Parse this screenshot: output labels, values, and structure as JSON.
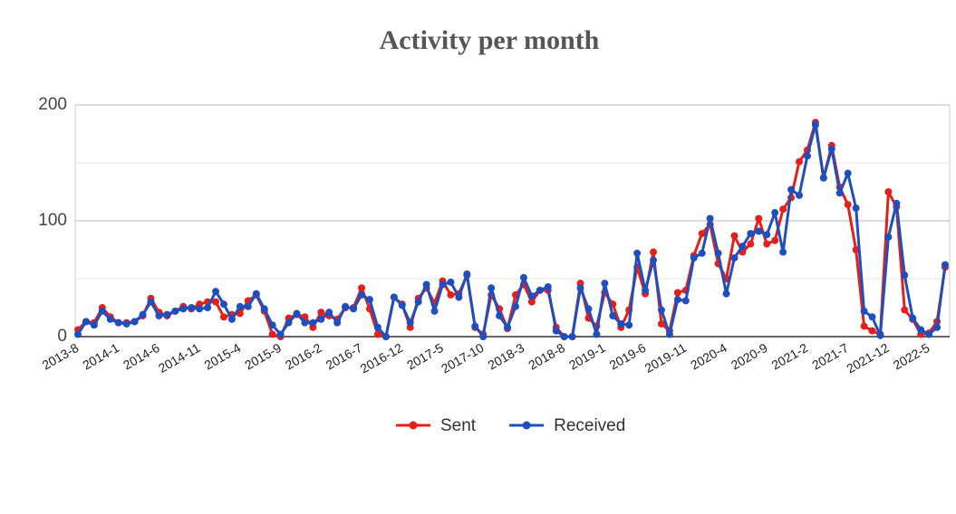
{
  "chart_data": {
    "type": "line",
    "title": "Activity per month",
    "categories": [
      "2013-8",
      null,
      null,
      null,
      null,
      "2014-1",
      null,
      null,
      null,
      null,
      "2014-6",
      null,
      null,
      null,
      null,
      "2014-11",
      null,
      null,
      null,
      null,
      "2015-4",
      null,
      null,
      null,
      null,
      "2015-9",
      null,
      null,
      null,
      null,
      "2016-2",
      null,
      null,
      null,
      null,
      "2016-7",
      null,
      null,
      null,
      null,
      "2016-12",
      null,
      null,
      null,
      null,
      "2017-5",
      null,
      null,
      null,
      null,
      "2017-10",
      null,
      null,
      null,
      null,
      "2018-3",
      null,
      null,
      null,
      null,
      "2018-8",
      null,
      null,
      null,
      null,
      "2019-1",
      null,
      null,
      null,
      null,
      "2019-6",
      null,
      null,
      null,
      null,
      "2019-11",
      null,
      null,
      null,
      null,
      "2020-4",
      null,
      null,
      null,
      null,
      "2020-9",
      null,
      null,
      null,
      null,
      "2021-2",
      null,
      null,
      null,
      null,
      "2021-7",
      null,
      null,
      null,
      null,
      "2021-12",
      null,
      null,
      null,
      null,
      "2022-5",
      null,
      null
    ],
    "series": [
      {
        "name": "Sent",
        "color": "#e3201b",
        "values": [
          6,
          13,
          12,
          25,
          17,
          12,
          12,
          13,
          18,
          33,
          21,
          18,
          22,
          26,
          24,
          28,
          30,
          30,
          17,
          19,
          20,
          31,
          36,
          22,
          2,
          0,
          16,
          19,
          17,
          8,
          21,
          18,
          15,
          25,
          25,
          42,
          24,
          2,
          0,
          34,
          28,
          8,
          33,
          42,
          29,
          48,
          36,
          37,
          53,
          8,
          2,
          36,
          24,
          7,
          36,
          45,
          30,
          40,
          40,
          8,
          0,
          0,
          46,
          16,
          9,
          38,
          28,
          8,
          23,
          60,
          37,
          73,
          11,
          5,
          38,
          40,
          70,
          89,
          97,
          63,
          50,
          87,
          73,
          80,
          102,
          80,
          83,
          110,
          120,
          151,
          161,
          185,
          137,
          165,
          129,
          114,
          75,
          9,
          5,
          2,
          125,
          112,
          23,
          15,
          2,
          3,
          13,
          60
        ]
      },
      {
        "name": "Received",
        "color": "#1f4fbf",
        "values": [
          2,
          13,
          10,
          22,
          15,
          12,
          11,
          13,
          19,
          30,
          18,
          19,
          22,
          24,
          25,
          24,
          25,
          39,
          28,
          15,
          26,
          26,
          37,
          24,
          10,
          2,
          12,
          20,
          12,
          12,
          15,
          21,
          12,
          26,
          24,
          36,
          32,
          8,
          0,
          34,
          27,
          12,
          30,
          45,
          22,
          45,
          47,
          34,
          54,
          9,
          0,
          42,
          18,
          8,
          26,
          51,
          35,
          40,
          43,
          5,
          0,
          0,
          42,
          24,
          2,
          46,
          18,
          11,
          10,
          72,
          40,
          66,
          23,
          2,
          32,
          31,
          68,
          72,
          102,
          72,
          37,
          68,
          78,
          89,
          91,
          88,
          107,
          73,
          127,
          122,
          156,
          183,
          137,
          162,
          124,
          141,
          111,
          22,
          17,
          1,
          86,
          115,
          53,
          16,
          6,
          2,
          8,
          62
        ]
      }
    ],
    "ylim": [
      0,
      200
    ],
    "yticks": [
      0,
      100,
      200
    ],
    "minor_yticks": [
      50,
      150
    ],
    "grid": true,
    "legend": "bottom"
  }
}
